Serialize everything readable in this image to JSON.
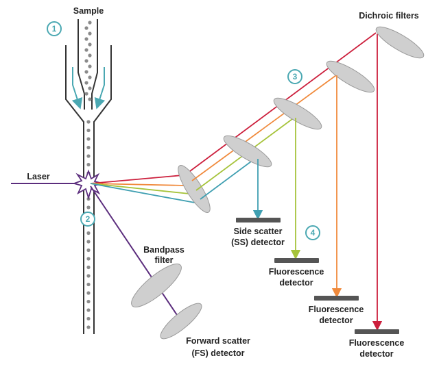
{
  "labels": {
    "sample": "Sample",
    "laser": "Laser",
    "dichroic": "Dichroic filters",
    "bandpass_1": "Bandpass",
    "bandpass_2": "filter",
    "fs_1": "Forward scatter",
    "fs_2": "(FS) detector",
    "ss_1": "Side scatter",
    "ss_2": "(SS) detector",
    "fl1_1": "Fluorescence",
    "fl1_2": "detector",
    "fl2_1": "Fluorescence",
    "fl2_2": "detector",
    "fl3_1": "Fluorescence",
    "fl3_2": "detector"
  },
  "steps": [
    "1",
    "2",
    "3",
    "4"
  ],
  "colors": {
    "laser": "#5b2d7d",
    "red": "#cc1f3c",
    "orange": "#f08a3c",
    "green": "#a6c33a",
    "teal": "#3f9fb1",
    "step": "#4aa8b2",
    "mirror": "#cfcfcf",
    "detector": "#555555"
  }
}
